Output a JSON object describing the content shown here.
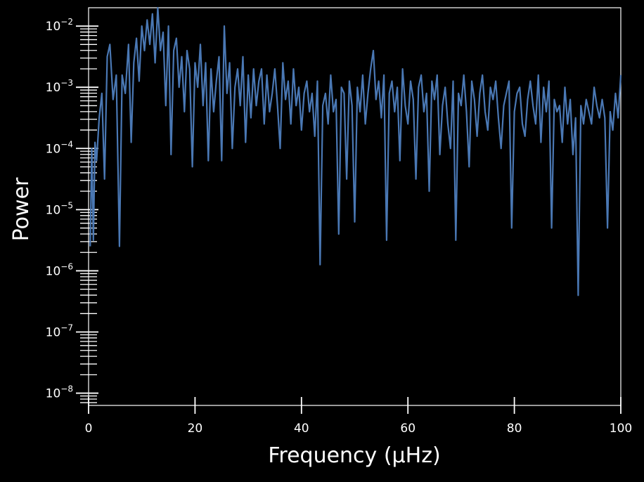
{
  "chart_data": {
    "type": "line",
    "title": "",
    "xlabel": "Frequency (μHz)",
    "ylabel": "Power",
    "xlim": [
      0,
      100
    ],
    "ylim_log10": [
      -8.2,
      -1.7
    ],
    "yscale": "log",
    "grid": false,
    "background_color": "#000000",
    "axes_color": "#ffffff",
    "series": [
      {
        "color": "#4a78b4",
        "x": [
          0.3,
          0.6,
          0.9,
          1.2,
          1.5,
          2.0,
          2.5,
          3.0,
          3.5,
          4.0,
          4.6,
          5.2,
          5.8,
          6.3,
          6.9,
          7.5,
          8.0,
          8.5,
          9.0,
          9.5,
          10.0,
          10.5,
          11.0,
          11.5,
          12.0,
          12.5,
          13.0,
          13.5,
          14.0,
          14.5,
          15.0,
          15.5,
          16.0,
          16.5,
          17.0,
          17.5,
          18.0,
          18.5,
          19.0,
          19.5,
          20.0,
          20.5,
          21.0,
          21.5,
          22.0,
          22.5,
          23.0,
          23.5,
          24.0,
          24.5,
          25.0,
          25.5,
          26.0,
          26.5,
          27.0,
          27.5,
          28.0,
          28.5,
          29.0,
          29.5,
          30.0,
          30.5,
          31.0,
          31.5,
          32.0,
          32.5,
          33.0,
          33.5,
          34.0,
          34.5,
          35.0,
          35.5,
          36.0,
          36.5,
          37.0,
          37.5,
          38.0,
          38.5,
          39.0,
          39.5,
          40.0,
          40.5,
          41.0,
          41.5,
          42.0,
          42.5,
          43.0,
          43.5,
          44.0,
          44.5,
          45.0,
          45.5,
          46.0,
          46.5,
          47.0,
          47.5,
          48.0,
          48.5,
          49.0,
          49.5,
          50.0,
          50.5,
          51.0,
          51.5,
          52.0,
          52.5,
          53.0,
          53.5,
          54.0,
          54.5,
          55.0,
          55.5,
          56.0,
          56.5,
          57.0,
          57.5,
          58.0,
          58.5,
          59.0,
          59.5,
          60.0,
          60.5,
          61.0,
          61.5,
          62.0,
          62.5,
          63.0,
          63.5,
          64.0,
          64.5,
          65.0,
          65.5,
          66.0,
          66.5,
          67.0,
          67.5,
          68.0,
          68.5,
          69.0,
          69.5,
          70.0,
          70.5,
          71.0,
          71.5,
          72.0,
          72.5,
          73.0,
          73.5,
          74.0,
          74.5,
          75.0,
          75.5,
          76.0,
          76.5,
          77.0,
          77.5,
          78.0,
          78.5,
          79.0,
          79.5,
          80.0,
          80.5,
          81.0,
          81.5,
          82.0,
          82.5,
          83.0,
          83.5,
          84.0,
          84.5,
          85.0,
          85.5,
          86.0,
          86.5,
          87.0,
          87.5,
          88.0,
          88.5,
          89.0,
          89.5,
          90.0,
          90.5,
          91.0,
          91.5,
          92.0,
          92.5,
          93.0,
          93.5,
          94.0,
          94.5,
          95.0,
          95.5,
          96.0,
          96.5,
          97.0,
          97.5,
          98.0,
          98.5,
          99.0,
          99.5,
          100.0
        ],
        "y_log10": [
          -5.6,
          -4.0,
          -5.5,
          -3.9,
          -4.2,
          -3.5,
          -3.1,
          -4.5,
          -2.5,
          -2.3,
          -3.2,
          -2.8,
          -5.6,
          -2.8,
          -3.1,
          -2.3,
          -3.9,
          -2.6,
          -2.2,
          -2.9,
          -2.0,
          -2.4,
          -1.9,
          -2.3,
          -1.8,
          -2.6,
          -1.7,
          -2.4,
          -2.1,
          -3.3,
          -2.0,
          -4.1,
          -2.4,
          -2.2,
          -3.0,
          -2.5,
          -3.4,
          -2.4,
          -2.7,
          -4.3,
          -2.6,
          -3.0,
          -2.3,
          -3.3,
          -2.6,
          -4.2,
          -2.7,
          -3.4,
          -2.9,
          -2.5,
          -4.2,
          -2.0,
          -3.1,
          -2.6,
          -4.0,
          -3.0,
          -2.7,
          -3.3,
          -2.5,
          -3.9,
          -2.8,
          -3.5,
          -2.7,
          -3.3,
          -2.9,
          -2.7,
          -3.6,
          -2.8,
          -3.4,
          -3.1,
          -2.7,
          -3.3,
          -4.0,
          -2.6,
          -3.2,
          -2.9,
          -3.6,
          -2.7,
          -3.3,
          -3.0,
          -3.7,
          -3.1,
          -2.9,
          -3.4,
          -3.1,
          -3.8,
          -2.9,
          -5.9,
          -3.3,
          -3.1,
          -3.6,
          -2.8,
          -3.4,
          -3.2,
          -5.4,
          -3.0,
          -3.1,
          -4.5,
          -2.9,
          -3.3,
          -5.2,
          -3.0,
          -3.4,
          -2.8,
          -3.6,
          -3.1,
          -2.7,
          -2.4,
          -3.2,
          -2.9,
          -3.5,
          -2.8,
          -5.5,
          -3.1,
          -2.9,
          -3.4,
          -3.0,
          -4.2,
          -2.7,
          -3.3,
          -3.6,
          -2.9,
          -3.2,
          -4.5,
          -3.0,
          -2.8,
          -3.4,
          -3.1,
          -4.7,
          -2.9,
          -3.2,
          -2.8,
          -4.1,
          -3.3,
          -3.0,
          -3.6,
          -4.0,
          -2.9,
          -5.5,
          -3.1,
          -3.3,
          -2.8,
          -3.4,
          -4.3,
          -2.9,
          -3.2,
          -3.8,
          -3.1,
          -2.8,
          -3.4,
          -3.7,
          -3.0,
          -3.2,
          -2.9,
          -3.5,
          -4.0,
          -3.3,
          -3.1,
          -2.9,
          -5.3,
          -3.4,
          -3.1,
          -3.0,
          -3.6,
          -3.8,
          -3.2,
          -2.9,
          -3.3,
          -3.6,
          -2.8,
          -3.9,
          -3.0,
          -3.4,
          -2.9,
          -5.3,
          -3.2,
          -3.4,
          -3.3,
          -3.9,
          -3.0,
          -3.6,
          -3.2,
          -4.1,
          -3.5,
          -6.4,
          -3.3,
          -3.6,
          -3.2,
          -3.4,
          -3.6,
          -3.0,
          -3.3,
          -3.5,
          -3.2,
          -3.5,
          -5.3,
          -3.4,
          -3.7,
          -3.1,
          -3.5,
          -2.8
        ]
      }
    ],
    "xticks": [
      "0",
      "20",
      "40",
      "60",
      "80",
      "100"
    ],
    "yticks": [
      "10",
      "10",
      "10",
      "10",
      "10",
      "10",
      "10"
    ],
    "ytick_exponents": [
      "−2",
      "−3",
      "−4",
      "−5",
      "−6",
      "−7",
      "−8"
    ],
    "ytick_values_log10": [
      -2,
      -3,
      -4,
      -5,
      -6,
      -7,
      -8
    ],
    "xtick_values": [
      0,
      20,
      40,
      60,
      80,
      100
    ]
  }
}
